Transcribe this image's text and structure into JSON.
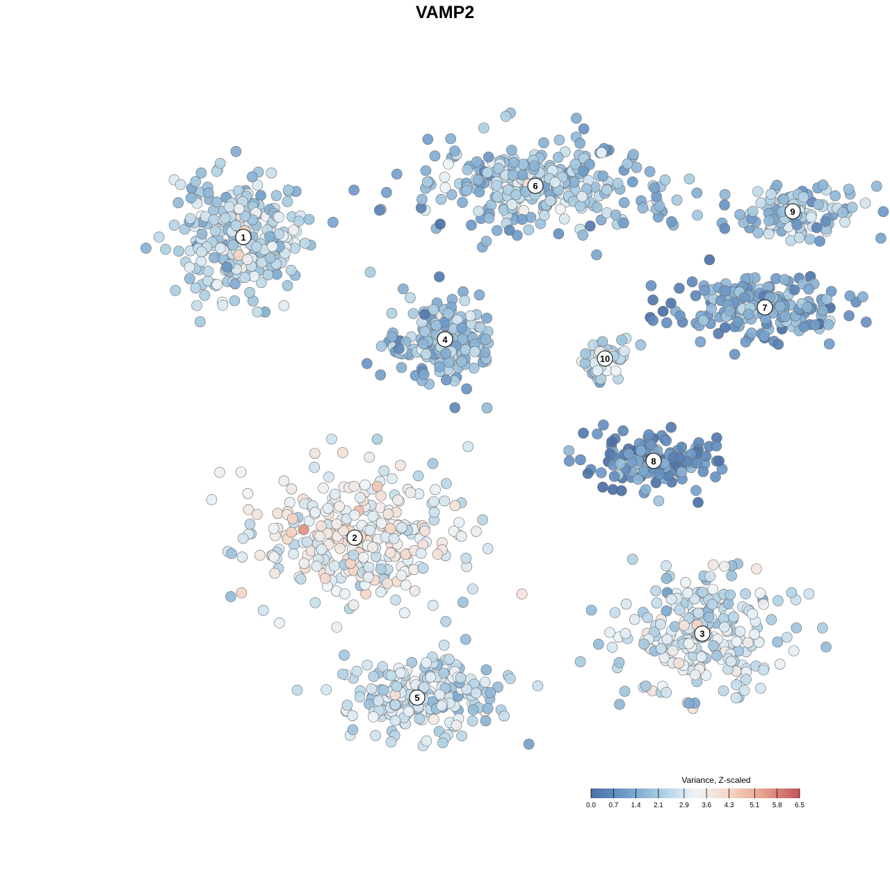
{
  "chart_data": {
    "type": "scatter",
    "title": "VAMP2",
    "xlabel": "",
    "ylabel": "",
    "grid": false,
    "legend": {
      "title": "Variance, Z-scaled",
      "placement": "bottom-right",
      "ticks": [
        "0.0",
        "0.7",
        "1.4",
        "2.1",
        "2.9",
        "3.6",
        "4.3",
        "5.1",
        "5.8",
        "6.5"
      ],
      "range": [
        0.0,
        6.5
      ],
      "colors": [
        "#4a6fa5",
        "#6e9bc9",
        "#a9cde2",
        "#eef4f8",
        "#f6d5c4",
        "#e59e8a",
        "#c4525b"
      ]
    },
    "clusters": [
      {
        "label": "1",
        "x": 1.6,
        "y": 7.6,
        "mean": 2.7
      },
      {
        "label": "2",
        "x": 3.2,
        "y": 2.9,
        "mean": 3.6
      },
      {
        "label": "3",
        "x": 8.2,
        "y": 1.4,
        "mean": 3.1
      },
      {
        "label": "4",
        "x": 4.5,
        "y": 6.0,
        "mean": 2.2
      },
      {
        "label": "5",
        "x": 4.1,
        "y": 0.4,
        "mean": 2.9
      },
      {
        "label": "6",
        "x": 5.8,
        "y": 8.4,
        "mean": 2.3
      },
      {
        "label": "7",
        "x": 9.1,
        "y": 6.5,
        "mean": 1.6
      },
      {
        "label": "8",
        "x": 7.5,
        "y": 4.1,
        "mean": 1.3
      },
      {
        "label": "9",
        "x": 9.5,
        "y": 8.0,
        "mean": 2.3
      },
      {
        "label": "10",
        "x": 6.8,
        "y": 5.7,
        "mean": 2.8
      }
    ]
  }
}
